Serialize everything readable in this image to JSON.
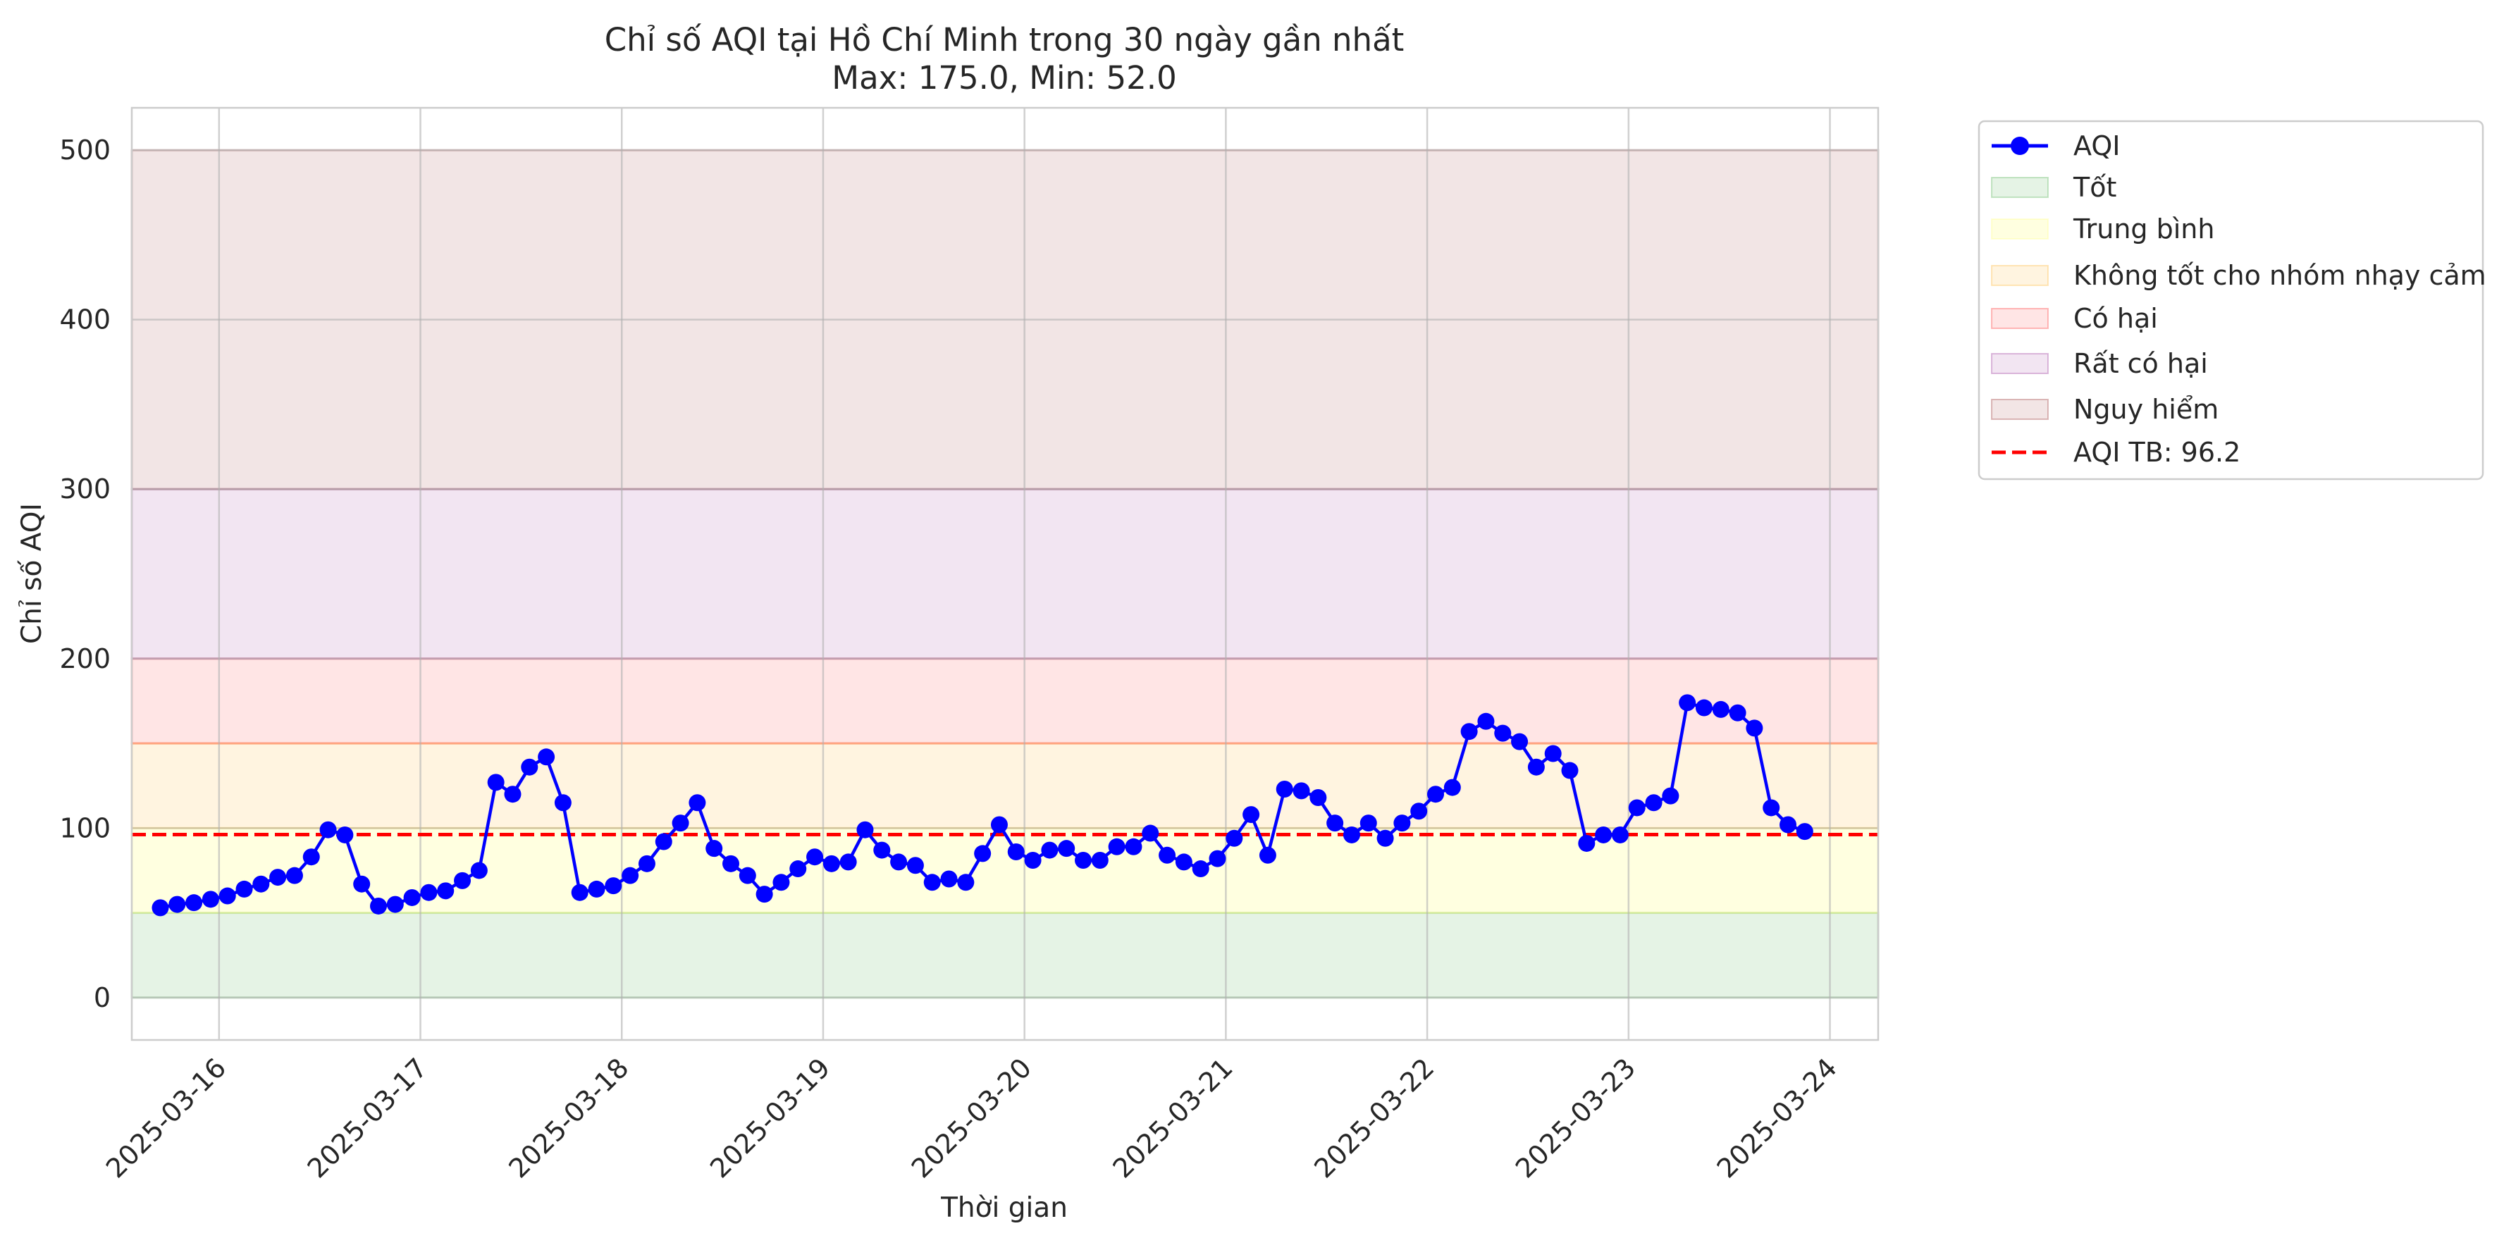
{
  "chart_data": {
    "type": "line",
    "title": "Chỉ số AQI tại Hồ Chí Minh trong 30 ngày gần nhất",
    "subtitle": "Max: 175.0, Min: 52.0",
    "xlabel": "Thời gian",
    "ylabel": "Chỉ số AQI",
    "ylim": [
      -25,
      525
    ],
    "xlim": [
      "2025-03-15 13:36",
      "2025-03-24 05:45"
    ],
    "y_ticks": [
      "0",
      "100",
      "200",
      "300",
      "400",
      "500"
    ],
    "x_ticks": [
      "2025-03-16",
      "2025-03-17",
      "2025-03-18",
      "2025-03-19",
      "2025-03-20",
      "2025-03-21",
      "2025-03-22",
      "2025-03-23",
      "2025-03-24"
    ],
    "grid": true,
    "legend_position": "outside upper right",
    "bands": [
      {
        "name": "Tốt",
        "from": 0,
        "to": 50,
        "color": "#2ca02c",
        "alpha": 0.12
      },
      {
        "name": "Trung bình",
        "from": 50,
        "to": 100,
        "color": "#ffff66",
        "alpha": 0.2
      },
      {
        "name": "Không tốt cho nhóm nhạy cảm",
        "from": 100,
        "to": 150,
        "color": "#ffa500",
        "alpha": 0.12
      },
      {
        "name": "Có hại",
        "from": 150,
        "to": 200,
        "color": "#ff0000",
        "alpha": 0.1
      },
      {
        "name": "Rất có hại",
        "from": 200,
        "to": 300,
        "color": "#800080",
        "alpha": 0.1
      },
      {
        "name": "Nguy hiểm",
        "from": 300,
        "to": 500,
        "color": "#800000",
        "alpha": 0.1
      }
    ],
    "series": [
      {
        "name": "AQI",
        "color": "#0000ff",
        "marker": "circle",
        "x": [
          "2025-03-15 17:00",
          "2025-03-15 19:00",
          "2025-03-15 21:00",
          "2025-03-15 23:00",
          "2025-03-16 01:00",
          "2025-03-16 03:00",
          "2025-03-16 05:00",
          "2025-03-16 07:00",
          "2025-03-16 09:00",
          "2025-03-16 11:00",
          "2025-03-16 13:00",
          "2025-03-16 15:00",
          "2025-03-16 17:00",
          "2025-03-16 19:00",
          "2025-03-16 21:00",
          "2025-03-16 23:00",
          "2025-03-17 01:00",
          "2025-03-17 03:00",
          "2025-03-17 05:00",
          "2025-03-17 07:00",
          "2025-03-17 09:00",
          "2025-03-17 11:00",
          "2025-03-17 13:00",
          "2025-03-17 15:00",
          "2025-03-17 17:00",
          "2025-03-17 19:00",
          "2025-03-17 21:00",
          "2025-03-17 23:00",
          "2025-03-18 01:00",
          "2025-03-18 03:00",
          "2025-03-18 05:00",
          "2025-03-18 07:00",
          "2025-03-18 09:00",
          "2025-03-18 11:00",
          "2025-03-18 13:00",
          "2025-03-18 15:00",
          "2025-03-18 17:00",
          "2025-03-18 19:00",
          "2025-03-18 21:00",
          "2025-03-18 23:00",
          "2025-03-19 01:00",
          "2025-03-19 03:00",
          "2025-03-19 05:00",
          "2025-03-19 07:00",
          "2025-03-19 09:00",
          "2025-03-19 11:00",
          "2025-03-19 13:00",
          "2025-03-19 15:00",
          "2025-03-19 17:00",
          "2025-03-19 19:00",
          "2025-03-19 21:00",
          "2025-03-19 23:00",
          "2025-03-20 01:00",
          "2025-03-20 03:00",
          "2025-03-20 05:00",
          "2025-03-20 07:00",
          "2025-03-20 09:00",
          "2025-03-20 11:00",
          "2025-03-20 13:00",
          "2025-03-20 15:00",
          "2025-03-20 17:00",
          "2025-03-20 19:00",
          "2025-03-20 21:00",
          "2025-03-20 23:00",
          "2025-03-21 01:00",
          "2025-03-21 03:00",
          "2025-03-21 05:00",
          "2025-03-21 07:00",
          "2025-03-21 09:00",
          "2025-03-21 11:00",
          "2025-03-21 13:00",
          "2025-03-21 15:00",
          "2025-03-21 17:00",
          "2025-03-21 19:00",
          "2025-03-21 21:00",
          "2025-03-21 23:00",
          "2025-03-22 01:00",
          "2025-03-22 03:00",
          "2025-03-22 05:00",
          "2025-03-22 07:00",
          "2025-03-22 09:00",
          "2025-03-22 11:00",
          "2025-03-22 13:00",
          "2025-03-22 15:00",
          "2025-03-22 17:00",
          "2025-03-22 19:00",
          "2025-03-22 21:00",
          "2025-03-22 23:00",
          "2025-03-23 01:00",
          "2025-03-23 03:00",
          "2025-03-23 05:00",
          "2025-03-23 07:00",
          "2025-03-23 09:00",
          "2025-03-23 11:00",
          "2025-03-23 13:00",
          "2025-03-23 15:00",
          "2025-03-23 17:00",
          "2025-03-23 19:00",
          "2025-03-23 21:00"
        ],
        "y": [
          53,
          55,
          56,
          58,
          60,
          64,
          67,
          71,
          72,
          83,
          99,
          96,
          67,
          54,
          55,
          59,
          62,
          63,
          69,
          75,
          127,
          120,
          136,
          142,
          115,
          62,
          64,
          66,
          72,
          79,
          92,
          103,
          115,
          88,
          79,
          72,
          61,
          68,
          76,
          83,
          79,
          80,
          99,
          87,
          80,
          78,
          68,
          70,
          68,
          85,
          102,
          86,
          81,
          87,
          88,
          81,
          81,
          89,
          89,
          97,
          84,
          80,
          76,
          82,
          94,
          108,
          84,
          123,
          122,
          118,
          103,
          96,
          103,
          94,
          103,
          110,
          120,
          124,
          157,
          163,
          156,
          151,
          136,
          144,
          134,
          91,
          96,
          96,
          112,
          115,
          119,
          174,
          171,
          170,
          168,
          159,
          112,
          102,
          98
        ]
      }
    ],
    "reference_line": {
      "name": "AQI TB: 96.2",
      "value": 96.2,
      "color": "#ff0000",
      "style": "dashed"
    }
  }
}
